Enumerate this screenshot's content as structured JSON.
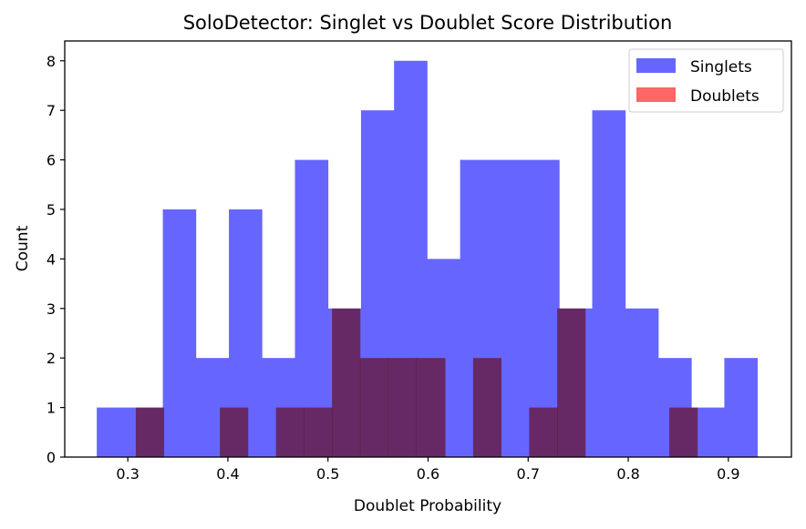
{
  "chart_data": {
    "type": "bar",
    "title": "SoloDetector: Singlet vs Doublet Score Distribution",
    "xlabel": "Doublet Probability",
    "ylabel": "Count",
    "xlim": [
      0.237,
      0.963
    ],
    "ylim": [
      0,
      8.4
    ],
    "xticks": [
      0.3,
      0.4,
      0.5,
      0.6,
      0.7,
      0.8,
      0.9
    ],
    "yticks": [
      0,
      1,
      2,
      3,
      4,
      5,
      6,
      7,
      8
    ],
    "grid": false,
    "legend": "top-right",
    "series": [
      {
        "name": "Singlets",
        "color": "#6666ff",
        "bin_edges": [
          0.269,
          0.302,
          0.335,
          0.368,
          0.401,
          0.434,
          0.467,
          0.5,
          0.533,
          0.566,
          0.599,
          0.632,
          0.665,
          0.698,
          0.731,
          0.764,
          0.797,
          0.83,
          0.863,
          0.896,
          0.929
        ],
        "counts": [
          1,
          1,
          5,
          2,
          5,
          2,
          6,
          3,
          7,
          8,
          4,
          6,
          6,
          6,
          3,
          7,
          3,
          2,
          1,
          2
        ]
      },
      {
        "name": "Doublets",
        "color": "#ff6666",
        "bin_edges": [
          0.308,
          0.336,
          0.364,
          0.392,
          0.42,
          0.448,
          0.476,
          0.504,
          0.532,
          0.56,
          0.588,
          0.617,
          0.645,
          0.673,
          0.701,
          0.729,
          0.757,
          0.785,
          0.813,
          0.841,
          0.869
        ],
        "counts": [
          1,
          0,
          0,
          1,
          0,
          1,
          1,
          3,
          2,
          2,
          2,
          0,
          2,
          0,
          1,
          3,
          0,
          0,
          0,
          1
        ]
      }
    ],
    "overlap_color": "#c22a66"
  }
}
